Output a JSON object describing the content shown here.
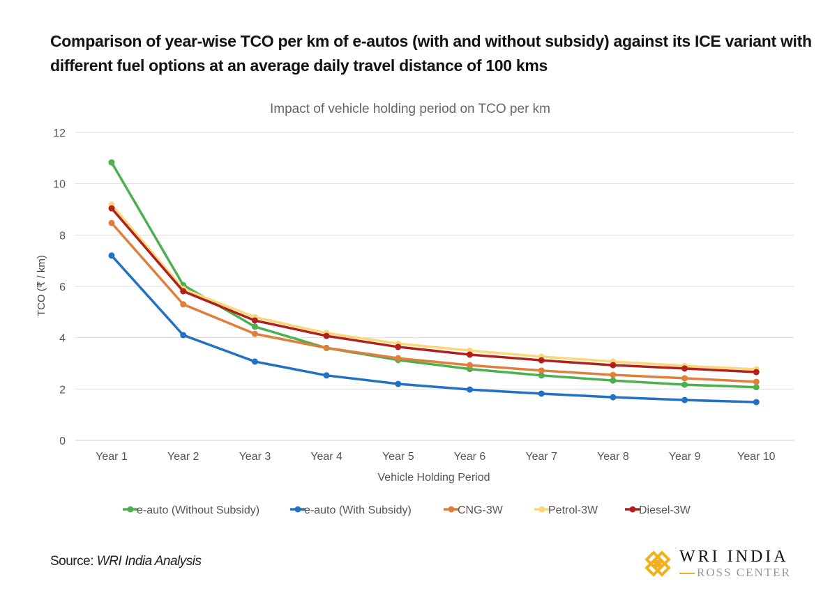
{
  "heading": "Comparison of year-wise TCO per km of e-autos (with and without subsidy) against its ICE variant with different fuel options at an average daily travel distance of 100 kms",
  "source_label": "Source: ",
  "source_value": "WRI India Analysis",
  "logo": {
    "main": "WRI INDIA",
    "sub": "ROSS CENTER",
    "color": "#f2b01e"
  },
  "chart_data": {
    "type": "line",
    "title": "Impact of vehicle holding period on TCO per km",
    "xlabel": "Vehicle Holding Period",
    "ylabel": "TCO (₹ / km)",
    "ylim": [
      0,
      12
    ],
    "yticks": [
      0,
      2,
      4,
      6,
      8,
      10,
      12
    ],
    "grid": true,
    "legend": "bottom",
    "categories": [
      "Year 1",
      "Year 2",
      "Year 3",
      "Year 4",
      "Year 5",
      "Year 6",
      "Year 7",
      "Year 8",
      "Year 9",
      "Year 10"
    ],
    "series": [
      {
        "name": "e-auto (Without Subsidy)",
        "color": "#4caf50",
        "values": [
          10.83,
          6.05,
          4.43,
          3.6,
          3.13,
          2.78,
          2.53,
          2.33,
          2.17,
          2.07
        ]
      },
      {
        "name": "e-auto (With Subsidy)",
        "color": "#2271c3",
        "values": [
          7.2,
          4.1,
          3.07,
          2.53,
          2.2,
          1.98,
          1.82,
          1.68,
          1.57,
          1.49
        ]
      },
      {
        "name": "CNG-3W",
        "color": "#e07f3c",
        "values": [
          8.47,
          5.3,
          4.15,
          3.6,
          3.2,
          2.93,
          2.72,
          2.55,
          2.42,
          2.28
        ]
      },
      {
        "name": "Petrol-3W",
        "color": "#fbd77a",
        "values": [
          9.18,
          5.9,
          4.8,
          4.18,
          3.77,
          3.5,
          3.26,
          3.07,
          2.9,
          2.77
        ]
      },
      {
        "name": "Diesel-3W",
        "color": "#b0201c",
        "values": [
          9.04,
          5.81,
          4.67,
          4.07,
          3.64,
          3.34,
          3.12,
          2.93,
          2.8,
          2.66
        ]
      }
    ]
  }
}
